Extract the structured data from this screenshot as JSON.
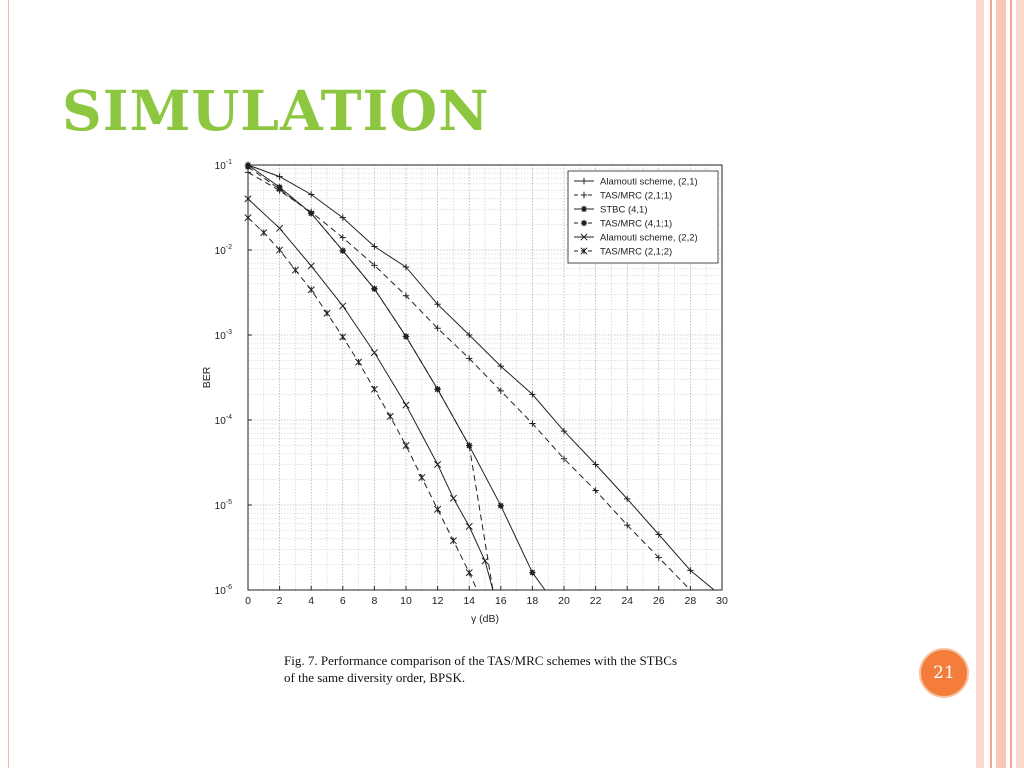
{
  "slide": {
    "title": "SIMULATION",
    "page_number": "21",
    "accent_color": "#8dc63f",
    "badge_color": "#f47d3b",
    "frame_color": "#f4a58c"
  },
  "caption": {
    "line1": "Fig. 7.   Performance comparison of the TAS/MRC schemes with the STBCs",
    "line2": "of the same diversity order, BPSK."
  },
  "chart_data": {
    "type": "line",
    "title": "",
    "xlabel": "γ (dB)",
    "ylabel": "BER",
    "xlim": [
      0,
      30
    ],
    "ylim": [
      1e-06,
      0.1
    ],
    "yscale": "log",
    "grid": true,
    "legend_position": "top-right",
    "x_ticks": [
      0,
      2,
      4,
      6,
      8,
      10,
      12,
      14,
      16,
      18,
      20,
      22,
      24,
      26,
      28,
      30
    ],
    "y_ticks": [
      {
        "value": 1e-06,
        "base": "10",
        "exp": "-6"
      },
      {
        "value": 1e-05,
        "base": "10",
        "exp": "-5"
      },
      {
        "value": 0.0001,
        "base": "10",
        "exp": "-4"
      },
      {
        "value": 0.001,
        "base": "10",
        "exp": "-3"
      },
      {
        "value": 0.01,
        "base": "10",
        "exp": "-2"
      },
      {
        "value": 0.1,
        "base": "10",
        "exp": "-1"
      }
    ],
    "series": [
      {
        "name": "Alamouti scheme, (2,1)",
        "dash": "solid",
        "marker": "plus",
        "x": [
          0,
          2,
          4,
          6,
          8,
          10,
          12,
          14,
          16,
          18,
          20,
          22,
          24,
          26,
          28,
          29.5
        ],
        "y": [
          0.1,
          0.073,
          0.045,
          0.024,
          0.011,
          0.0063,
          0.0023,
          0.001,
          0.00043,
          0.0002,
          7.4e-05,
          3e-05,
          1.18e-05,
          4.5e-06,
          1.7e-06,
          1e-06
        ]
      },
      {
        "name": "TAS/MRC (2,1;1)",
        "dash": "dash",
        "marker": "plus",
        "x": [
          0,
          2,
          4,
          6,
          8,
          10,
          12,
          14,
          16,
          18,
          20,
          22,
          24,
          26,
          28
        ],
        "y": [
          0.082,
          0.05,
          0.028,
          0.014,
          0.0066,
          0.0029,
          0.0012,
          0.00053,
          0.00022,
          9.1e-05,
          3.5e-05,
          1.48e-05,
          5.8e-06,
          2.4e-06,
          1e-06
        ]
      },
      {
        "name": "STBC (4,1)",
        "dash": "solid",
        "marker": "star",
        "x": [
          0,
          2,
          4,
          6,
          8,
          10,
          12,
          14,
          16,
          18,
          18.8
        ],
        "y": [
          0.1,
          0.055,
          0.027,
          0.0098,
          0.0035,
          0.00096,
          0.00023,
          5e-05,
          9.8e-06,
          1.6e-06,
          1e-06
        ]
      },
      {
        "name": "TAS/MRC (4,1;1)",
        "dash": "dash",
        "marker": "star",
        "x": [
          0,
          2,
          4,
          6,
          8,
          10,
          12,
          14,
          15.5
        ],
        "y": [
          0.095,
          0.052,
          0.027,
          0.0098,
          0.0035,
          0.00096,
          0.00023,
          5e-05,
          1e-06
        ]
      },
      {
        "name": "Alamouti scheme, (2,2)",
        "dash": "solid",
        "marker": "x",
        "x": [
          0,
          2,
          4,
          6,
          8,
          10,
          12,
          13,
          14,
          15,
          15.5
        ],
        "y": [
          0.04,
          0.018,
          0.0065,
          0.0022,
          0.00062,
          0.00015,
          3e-05,
          1.2e-05,
          5.6e-06,
          2.2e-06,
          1e-06
        ]
      },
      {
        "name": "TAS/MRC (2,1;2)",
        "dash": "dash",
        "marker": "asterisk",
        "x": [
          0,
          1,
          2,
          3,
          4,
          5,
          6,
          7,
          8,
          9,
          10,
          11,
          12,
          13,
          14,
          14.5
        ],
        "y": [
          0.024,
          0.016,
          0.01,
          0.0058,
          0.0034,
          0.0018,
          0.00095,
          0.00048,
          0.00023,
          0.00011,
          5e-05,
          2.1e-05,
          8.9e-06,
          3.8e-06,
          1.6e-06,
          1e-06
        ]
      }
    ]
  }
}
